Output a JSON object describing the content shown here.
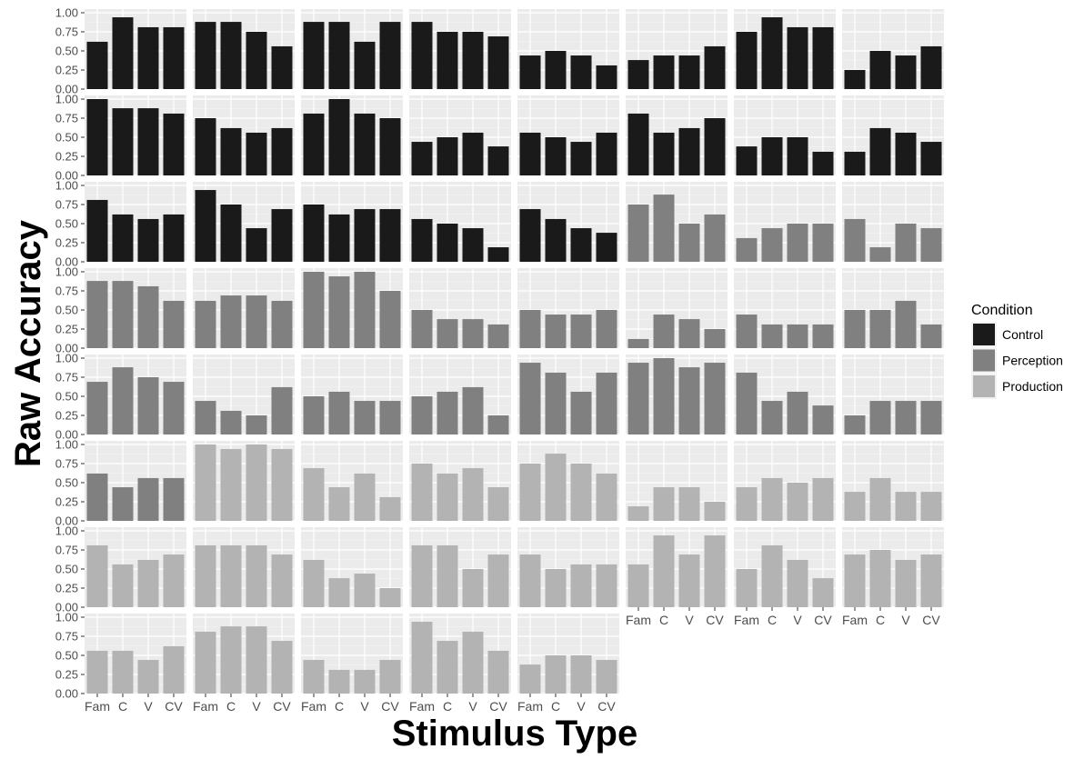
{
  "chart_data": {
    "type": "bar",
    "layout": "faceted small multiples, 8 columns, panels ordered row-wise",
    "xlabel": "Stimulus Type",
    "ylabel": "Raw Accuracy",
    "categories": [
      "Fam",
      "C",
      "V",
      "CV"
    ],
    "yticks": [
      "0.00",
      "0.25",
      "0.50",
      "0.75",
      "1.00"
    ],
    "ylim": [
      0,
      1
    ],
    "grid": true,
    "legend": {
      "title": "Condition",
      "placement": "right",
      "entries": [
        {
          "name": "Control",
          "color": "#1a1a1a"
        },
        {
          "name": "Perception",
          "color": "#808080"
        },
        {
          "name": "Production",
          "color": "#b3b3b3"
        }
      ]
    },
    "panels": [
      {
        "condition": "Control",
        "values": [
          0.62,
          0.94,
          0.81,
          0.81
        ]
      },
      {
        "condition": "Control",
        "values": [
          0.88,
          0.88,
          0.75,
          0.56
        ]
      },
      {
        "condition": "Control",
        "values": [
          0.88,
          0.88,
          0.62,
          0.88
        ]
      },
      {
        "condition": "Control",
        "values": [
          0.88,
          0.75,
          0.75,
          0.69
        ]
      },
      {
        "condition": "Control",
        "values": [
          0.44,
          0.5,
          0.44,
          0.31
        ]
      },
      {
        "condition": "Control",
        "values": [
          0.38,
          0.44,
          0.44,
          0.56
        ]
      },
      {
        "condition": "Control",
        "values": [
          0.75,
          0.94,
          0.81,
          0.81
        ]
      },
      {
        "condition": "Control",
        "values": [
          0.25,
          0.5,
          0.44,
          0.56
        ]
      },
      {
        "condition": "Control",
        "values": [
          1.0,
          0.88,
          0.88,
          0.81
        ]
      },
      {
        "condition": "Control",
        "values": [
          0.75,
          0.62,
          0.56,
          0.62
        ]
      },
      {
        "condition": "Control",
        "values": [
          0.81,
          1.0,
          0.81,
          0.75
        ]
      },
      {
        "condition": "Control",
        "values": [
          0.44,
          0.5,
          0.56,
          0.38
        ]
      },
      {
        "condition": "Control",
        "values": [
          0.56,
          0.5,
          0.44,
          0.56
        ]
      },
      {
        "condition": "Control",
        "values": [
          0.81,
          0.56,
          0.62,
          0.75
        ]
      },
      {
        "condition": "Control",
        "values": [
          0.38,
          0.5,
          0.5,
          0.31
        ]
      },
      {
        "condition": "Control",
        "values": [
          0.31,
          0.62,
          0.56,
          0.44
        ]
      },
      {
        "condition": "Control",
        "values": [
          0.81,
          0.62,
          0.56,
          0.62
        ]
      },
      {
        "condition": "Control",
        "values": [
          0.94,
          0.75,
          0.44,
          0.69
        ]
      },
      {
        "condition": "Control",
        "values": [
          0.75,
          0.62,
          0.69,
          0.69
        ]
      },
      {
        "condition": "Control",
        "values": [
          0.56,
          0.5,
          0.44,
          0.19
        ]
      },
      {
        "condition": "Control",
        "values": [
          0.69,
          0.56,
          0.44,
          0.38
        ]
      },
      {
        "condition": "Perception",
        "values": [
          0.75,
          0.88,
          0.5,
          0.62
        ]
      },
      {
        "condition": "Perception",
        "values": [
          0.31,
          0.44,
          0.5,
          0.5
        ]
      },
      {
        "condition": "Perception",
        "values": [
          0.56,
          0.19,
          0.5,
          0.44
        ]
      },
      {
        "condition": "Perception",
        "values": [
          0.88,
          0.88,
          0.81,
          0.62
        ]
      },
      {
        "condition": "Perception",
        "values": [
          0.62,
          0.69,
          0.69,
          0.62
        ]
      },
      {
        "condition": "Perception",
        "values": [
          1.0,
          0.94,
          1.0,
          0.75
        ]
      },
      {
        "condition": "Perception",
        "values": [
          0.5,
          0.38,
          0.38,
          0.31
        ]
      },
      {
        "condition": "Perception",
        "values": [
          0.5,
          0.44,
          0.44,
          0.5
        ]
      },
      {
        "condition": "Perception",
        "values": [
          0.12,
          0.44,
          0.38,
          0.25
        ]
      },
      {
        "condition": "Perception",
        "values": [
          0.44,
          0.31,
          0.31,
          0.31
        ]
      },
      {
        "condition": "Perception",
        "values": [
          0.5,
          0.5,
          0.62,
          0.31
        ]
      },
      {
        "condition": "Perception",
        "values": [
          0.69,
          0.88,
          0.75,
          0.69
        ]
      },
      {
        "condition": "Perception",
        "values": [
          0.44,
          0.31,
          0.25,
          0.62
        ]
      },
      {
        "condition": "Perception",
        "values": [
          0.5,
          0.56,
          0.44,
          0.44
        ]
      },
      {
        "condition": "Perception",
        "values": [
          0.5,
          0.56,
          0.62,
          0.25
        ]
      },
      {
        "condition": "Perception",
        "values": [
          0.94,
          0.81,
          0.56,
          0.81
        ]
      },
      {
        "condition": "Perception",
        "values": [
          0.94,
          1.0,
          0.88,
          0.94
        ]
      },
      {
        "condition": "Perception",
        "values": [
          0.81,
          0.44,
          0.56,
          0.38
        ]
      },
      {
        "condition": "Perception",
        "values": [
          0.25,
          0.44,
          0.44,
          0.44
        ]
      },
      {
        "condition": "Perception",
        "values": [
          0.62,
          0.44,
          0.56,
          0.56
        ]
      },
      {
        "condition": "Production",
        "values": [
          1.0,
          0.94,
          1.0,
          0.94
        ]
      },
      {
        "condition": "Production",
        "values": [
          0.69,
          0.44,
          0.62,
          0.31
        ]
      },
      {
        "condition": "Production",
        "values": [
          0.75,
          0.62,
          0.69,
          0.44
        ]
      },
      {
        "condition": "Production",
        "values": [
          0.75,
          0.88,
          0.75,
          0.62
        ]
      },
      {
        "condition": "Production",
        "values": [
          0.19,
          0.44,
          0.44,
          0.25
        ]
      },
      {
        "condition": "Production",
        "values": [
          0.44,
          0.56,
          0.5,
          0.56
        ]
      },
      {
        "condition": "Production",
        "values": [
          0.38,
          0.56,
          0.38,
          0.38
        ]
      },
      {
        "condition": "Production",
        "values": [
          0.81,
          0.56,
          0.62,
          0.69
        ]
      },
      {
        "condition": "Production",
        "values": [
          0.81,
          0.81,
          0.81,
          0.69
        ]
      },
      {
        "condition": "Production",
        "values": [
          0.62,
          0.38,
          0.44,
          0.25
        ]
      },
      {
        "condition": "Production",
        "values": [
          0.81,
          0.81,
          0.5,
          0.69
        ]
      },
      {
        "condition": "Production",
        "values": [
          0.69,
          0.5,
          0.56,
          0.56
        ]
      },
      {
        "condition": "Production",
        "values": [
          0.56,
          0.94,
          0.69,
          0.94
        ]
      },
      {
        "condition": "Production",
        "values": [
          0.5,
          0.81,
          0.62,
          0.38
        ]
      },
      {
        "condition": "Production",
        "values": [
          0.69,
          0.75,
          0.62,
          0.69
        ]
      },
      {
        "condition": "Production",
        "values": [
          0.56,
          0.56,
          0.44,
          0.62
        ]
      },
      {
        "condition": "Production",
        "values": [
          0.81,
          0.88,
          0.88,
          0.69
        ]
      },
      {
        "condition": "Production",
        "values": [
          0.44,
          0.31,
          0.31,
          0.44
        ]
      },
      {
        "condition": "Production",
        "values": [
          0.94,
          0.69,
          0.81,
          0.56
        ]
      },
      {
        "condition": "Production",
        "values": [
          0.38,
          0.5,
          0.5,
          0.44
        ]
      }
    ]
  }
}
